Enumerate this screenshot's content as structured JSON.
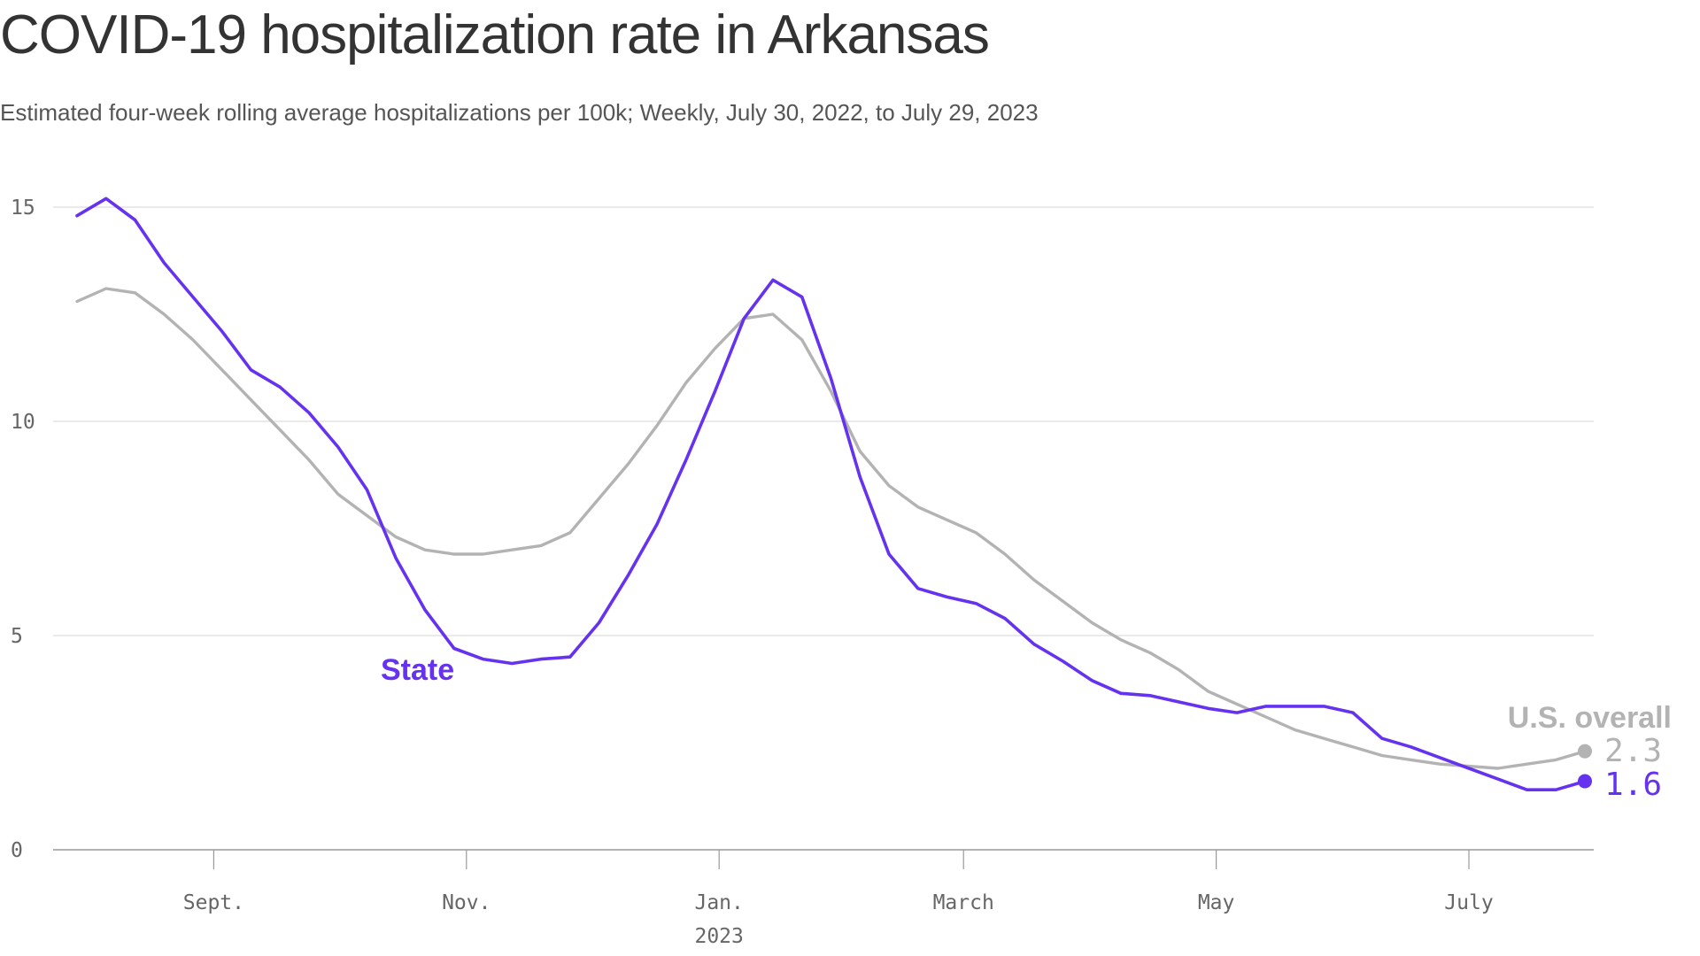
{
  "title": "COVID-19 hospitalization rate in Arkansas",
  "subtitle": "Estimated four-week rolling average hospitalizations per 100k; Weekly, July 30, 2022, to July 29, 2023",
  "colors": {
    "state": "#6533f0",
    "us": "#b3b3b3",
    "grid": "#dddddd",
    "axis": "#999999"
  },
  "chart_data": {
    "type": "line",
    "x": [
      "2022-07-30",
      "2022-08-06",
      "2022-08-13",
      "2022-08-20",
      "2022-08-27",
      "2022-09-03",
      "2022-09-10",
      "2022-09-17",
      "2022-09-24",
      "2022-10-01",
      "2022-10-08",
      "2022-10-15",
      "2022-10-22",
      "2022-10-29",
      "2022-11-05",
      "2022-11-12",
      "2022-11-19",
      "2022-11-26",
      "2022-12-03",
      "2022-12-10",
      "2022-12-17",
      "2022-12-24",
      "2022-12-31",
      "2023-01-07",
      "2023-01-14",
      "2023-01-21",
      "2023-01-28",
      "2023-02-04",
      "2023-02-11",
      "2023-02-18",
      "2023-02-25",
      "2023-03-04",
      "2023-03-11",
      "2023-03-18",
      "2023-03-25",
      "2023-04-01",
      "2023-04-08",
      "2023-04-15",
      "2023-04-22",
      "2023-04-29",
      "2023-05-06",
      "2023-05-13",
      "2023-05-20",
      "2023-05-27",
      "2023-06-03",
      "2023-06-10",
      "2023-06-17",
      "2023-06-24",
      "2023-07-01",
      "2023-07-08",
      "2023-07-15",
      "2023-07-22",
      "2023-07-29"
    ],
    "series": [
      {
        "name": "U.S. overall",
        "color": "#b3b3b3",
        "values": [
          12.8,
          13.1,
          13.0,
          12.5,
          11.9,
          11.2,
          10.5,
          9.8,
          9.1,
          8.3,
          7.8,
          7.3,
          7.0,
          6.9,
          6.9,
          7.0,
          7.1,
          7.4,
          8.2,
          9.0,
          9.9,
          10.9,
          11.7,
          12.4,
          12.5,
          11.9,
          10.7,
          9.3,
          8.5,
          8.0,
          7.7,
          7.4,
          6.9,
          6.3,
          5.8,
          5.3,
          4.9,
          4.6,
          4.2,
          3.7,
          3.4,
          3.1,
          2.8,
          2.6,
          2.4,
          2.2,
          2.1,
          2.0,
          1.95,
          1.9,
          2.0,
          2.1,
          2.3
        ]
      },
      {
        "name": "State",
        "color": "#6533f0",
        "values": [
          14.8,
          15.2,
          14.7,
          13.7,
          12.9,
          12.1,
          11.2,
          10.8,
          10.2,
          9.4,
          8.4,
          6.8,
          5.6,
          4.7,
          4.45,
          4.35,
          4.45,
          4.5,
          5.3,
          6.4,
          7.6,
          9.1,
          10.7,
          12.4,
          13.3,
          12.9,
          11.0,
          8.7,
          6.9,
          6.1,
          5.9,
          5.75,
          5.4,
          4.8,
          4.4,
          3.95,
          3.65,
          3.6,
          3.45,
          3.3,
          3.2,
          3.35,
          3.35,
          3.35,
          3.2,
          2.6,
          2.4,
          2.15,
          1.9,
          1.65,
          1.4,
          1.4,
          1.6
        ]
      }
    ],
    "x_ticks": [
      {
        "date": "2022-09-01",
        "label": "Sept."
      },
      {
        "date": "2022-11-01",
        "label": "Nov."
      },
      {
        "date": "2023-01-01",
        "label": "Jan.",
        "sublabel": "2023"
      },
      {
        "date": "2023-03-01",
        "label": "March"
      },
      {
        "date": "2023-05-01",
        "label": "May"
      },
      {
        "date": "2023-07-01",
        "label": "July"
      }
    ],
    "y_ticks": [
      0,
      5,
      10,
      15
    ],
    "ylim": [
      0,
      15
    ],
    "grid": "horizontal",
    "series_labels": {
      "state": "State",
      "us": "U.S. overall"
    },
    "end_values": {
      "us": "2.3",
      "state": "1.6"
    }
  }
}
